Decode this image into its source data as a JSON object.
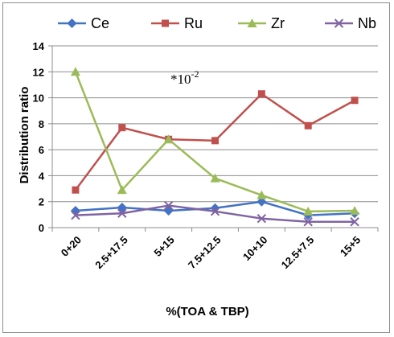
{
  "chart_data": {
    "type": "line",
    "title": "",
    "xlabel": "%(TOA & TBP)",
    "ylabel": "Distribution ratio",
    "categories": [
      "0+20",
      "2.5+17.5",
      "5+15",
      "7.5+12.5",
      "10+10",
      "12.5+7.5",
      "15+5"
    ],
    "ylim": [
      0,
      14
    ],
    "yticks": [
      0,
      2,
      4,
      6,
      8,
      10,
      12,
      14
    ],
    "grid": "horizontal",
    "legend_position": "top",
    "annotation": {
      "base": "*10",
      "exponent": "-2"
    },
    "series": [
      {
        "name": "Ce",
        "color": "#4472c4",
        "marker": "diamond",
        "values": [
          1.3,
          1.55,
          1.3,
          1.5,
          2.0,
          0.95,
          1.1
        ]
      },
      {
        "name": "Ru",
        "color": "#c0504d",
        "marker": "square",
        "values": [
          2.9,
          7.7,
          6.8,
          6.7,
          10.3,
          7.85,
          9.8
        ]
      },
      {
        "name": "Zr",
        "color": "#9bbb59",
        "marker": "triangle",
        "values": [
          12.0,
          2.9,
          6.8,
          3.8,
          2.5,
          1.25,
          1.3
        ]
      },
      {
        "name": "Nb",
        "color": "#8064a2",
        "marker": "x",
        "values": [
          0.95,
          1.1,
          1.7,
          1.25,
          0.7,
          0.45,
          0.45
        ]
      }
    ]
  }
}
